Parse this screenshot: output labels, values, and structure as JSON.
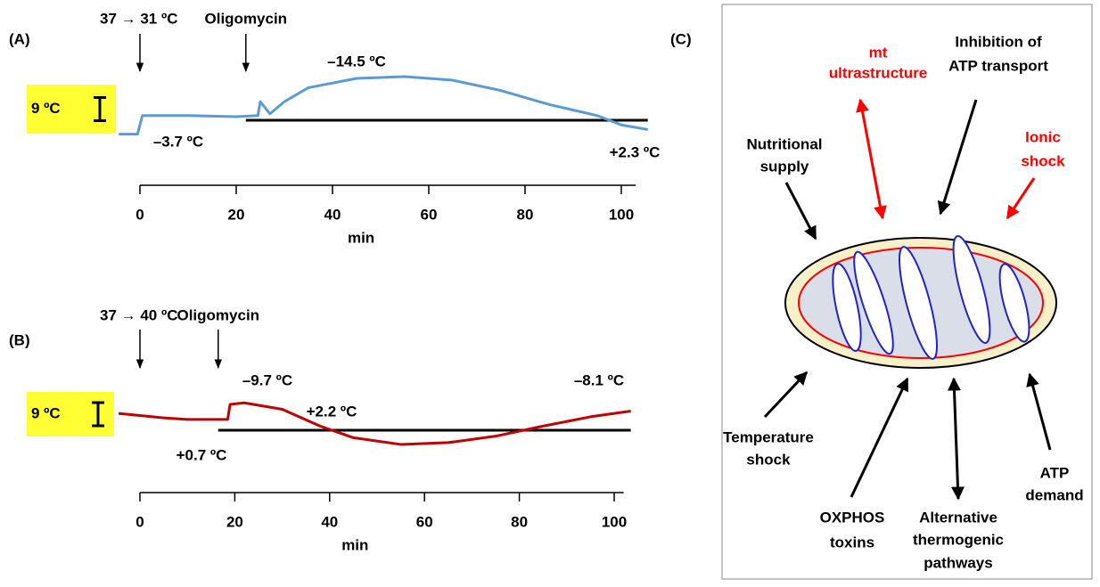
{
  "chart_data": [
    {
      "type": "line",
      "panel_label": "(A)",
      "x_label": "min",
      "xlim": [
        0,
        103
      ],
      "xticks": [
        0,
        20,
        40,
        60,
        80,
        100
      ],
      "scale_bar": {
        "value": 9,
        "label": "9 ºC"
      },
      "events": [
        {
          "label": "37 → 31 ºC",
          "x": 0
        },
        {
          "label": "Oligomycin",
          "x": 22
        }
      ],
      "annotations": [
        "–3.7 ºC",
        "–14.5 ºC",
        "+2.3 ºC"
      ],
      "series": [
        {
          "color": "#5b9bd5",
          "x": [
            -4.4,
            -0.5,
            0.5,
            10,
            20,
            24.5,
            25,
            27,
            30,
            35,
            45,
            55,
            65,
            75,
            85,
            95,
            100,
            105.5
          ],
          "values": [
            -5.4,
            -5.4,
            1.8,
            1.8,
            1.4,
            1.8,
            7.2,
            2.5,
            7.2,
            12.6,
            16.2,
            16.9,
            15.5,
            11.5,
            6.1,
            1.8,
            -1.8,
            -3.6
          ]
        }
      ]
    },
    {
      "type": "line",
      "panel_label": "(B)",
      "x_label": "min",
      "xlim": [
        0,
        102
      ],
      "xticks": [
        0,
        20,
        40,
        60,
        80,
        100
      ],
      "scale_bar": {
        "value": 9,
        "label": "9 ºC"
      },
      "events": [
        {
          "label": "37 → 40 ºC",
          "x": 0
        },
        {
          "label": "Oligomycin",
          "x": 16.5
        }
      ],
      "annotations": [
        "+0.7 ºC",
        "–9.7 ºC",
        "+2.2 ºC",
        "–8.1 ºC"
      ],
      "series": [
        {
          "color": "#c00000",
          "x": [
            -4.5,
            5,
            10,
            18.5,
            19,
            22,
            30,
            38,
            45,
            55,
            65,
            75,
            85,
            95,
            103.5
          ],
          "values": [
            6.5,
            4.8,
            4.2,
            4.2,
            10,
            10.6,
            8.1,
            1.6,
            -2.9,
            -5.5,
            -4.8,
            -2.3,
            1.6,
            5.2,
            7.4
          ]
        }
      ]
    }
  ],
  "diagram": {
    "panel_label": "(C)",
    "labels": [
      {
        "lines": [
          "mt",
          "ultrastructure"
        ],
        "color": "#ff0000"
      },
      {
        "lines": [
          "Inhibition of",
          "ATP transport"
        ],
        "color": "#000000"
      },
      {
        "lines": [
          "Nutritional",
          "supply"
        ],
        "color": "#000000"
      },
      {
        "lines": [
          "Ionic",
          "shock"
        ],
        "color": "#ff0000"
      },
      {
        "lines": [
          "Temperature",
          "shock"
        ],
        "color": "#000000"
      },
      {
        "lines": [
          "OXPHOS",
          "toxins"
        ],
        "color": "#000000"
      },
      {
        "lines": [
          "Alternative",
          "thermogenic",
          "pathways"
        ],
        "color": "#000000"
      },
      {
        "lines": [
          "ATP",
          "demand"
        ],
        "color": "#000000"
      }
    ]
  }
}
